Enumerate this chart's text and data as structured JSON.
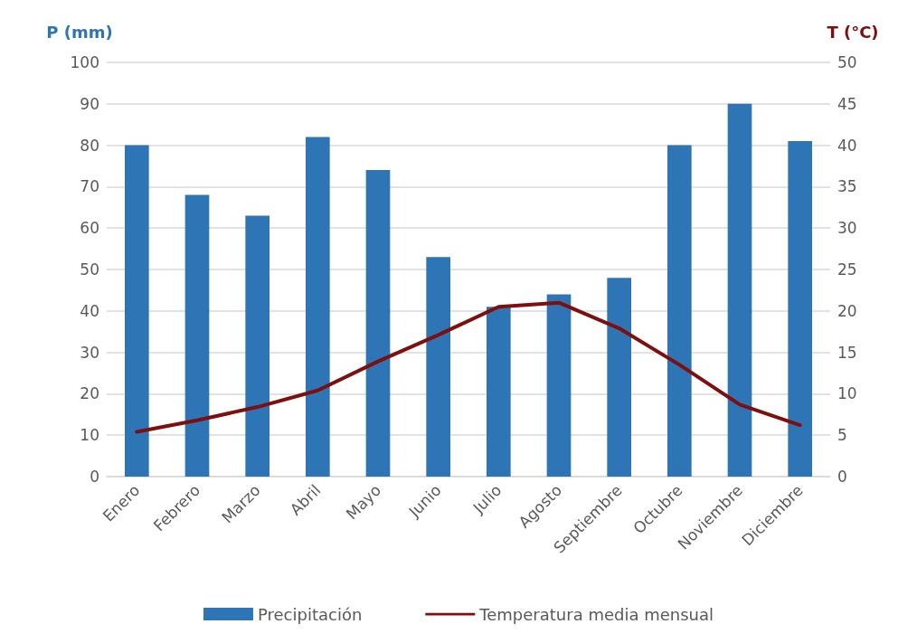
{
  "chart_data": {
    "type": "bar",
    "ylabel": "P (mm)",
    "y2label": "T (°C)",
    "categories": [
      "Enero",
      "Febrero",
      "Marzo",
      "Abril",
      "Mayo",
      "Junio",
      "Julio",
      "Agosto",
      "Septiembre",
      "Octubre",
      "Noviembre",
      "Diciembre"
    ],
    "series": [
      {
        "name": "Precipitación",
        "color": "#2e75b6",
        "values": [
          80,
          68,
          63,
          82,
          74,
          53,
          41,
          44,
          48,
          80,
          90,
          81
        ]
      },
      {
        "name": "Temperatura media mensual",
        "type": "line",
        "axis": "y2",
        "color": "#7f0f0f",
        "marker": "none",
        "line_style": "solid",
        "values": [
          5.4,
          6.8,
          8.4,
          10.4,
          13.9,
          17.1,
          20.5,
          21,
          17.9,
          13.5,
          8.7,
          6.2
        ]
      }
    ],
    "ylim": [
      0,
      100
    ],
    "yticks": [
      0,
      10,
      20,
      30,
      40,
      50,
      60,
      70,
      80,
      90,
      100
    ],
    "y2lim": [
      0,
      50
    ],
    "y2ticks": [
      0,
      5,
      10,
      15,
      20,
      25,
      30,
      35,
      40,
      45,
      50
    ],
    "grid": "y",
    "legend": "bottom"
  }
}
